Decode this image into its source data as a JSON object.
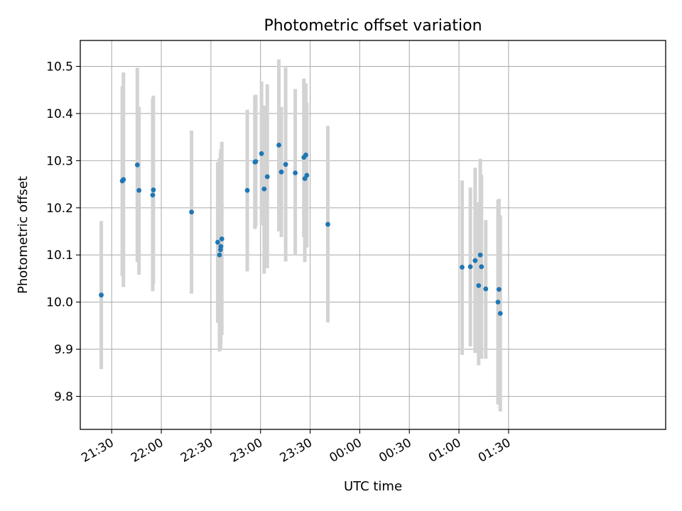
{
  "chart_data": {
    "type": "scatter",
    "title": "Photometric offset variation",
    "xlabel": "UTC time",
    "ylabel": "Photometric offset",
    "x_unit": "minutes (UTC clock, values past midnight > 1440)",
    "xlim": [
      1271,
      1625
    ],
    "ylim": [
      9.73,
      10.555
    ],
    "grid": true,
    "x_ticks": [
      {
        "value": 1290,
        "label": "21:30"
      },
      {
        "value": 1320,
        "label": "22:00"
      },
      {
        "value": 1350,
        "label": "22:30"
      },
      {
        "value": 1380,
        "label": "23:00"
      },
      {
        "value": 1410,
        "label": "23:30"
      },
      {
        "value": 1440,
        "label": "00:00"
      },
      {
        "value": 1470,
        "label": "00:30"
      },
      {
        "value": 1500,
        "label": "01:00"
      },
      {
        "value": 1530,
        "label": "01:30"
      }
    ],
    "y_ticks": [
      {
        "value": 9.8,
        "label": "9.8"
      },
      {
        "value": 9.9,
        "label": "9.9"
      },
      {
        "value": 10.0,
        "label": "10.0"
      },
      {
        "value": 10.1,
        "label": "10.1"
      },
      {
        "value": 10.2,
        "label": "10.2"
      },
      {
        "value": 10.3,
        "label": "10.3"
      },
      {
        "value": 10.4,
        "label": "10.4"
      },
      {
        "value": 10.5,
        "label": "10.5"
      }
    ],
    "colors": {
      "point": "#1f77b4",
      "errorbar": "#d3d3d3",
      "grid": "#b0b0b0"
    },
    "series": [
      {
        "points": [
          {
            "x": 1283.7,
            "y": 10.015,
            "ylo": 9.858,
            "yhi": 10.172
          },
          {
            "x": 1296.4,
            "y": 10.257,
            "ylo": 10.055,
            "yhi": 10.458
          },
          {
            "x": 1297.1,
            "y": 10.26,
            "ylo": 10.032,
            "yhi": 10.487
          },
          {
            "x": 1305.5,
            "y": 10.291,
            "ylo": 10.085,
            "yhi": 10.497
          },
          {
            "x": 1306.5,
            "y": 10.237,
            "ylo": 10.058,
            "yhi": 10.414
          },
          {
            "x": 1314.8,
            "y": 10.227,
            "ylo": 10.023,
            "yhi": 10.432
          },
          {
            "x": 1315.2,
            "y": 10.238,
            "ylo": 10.038,
            "yhi": 10.438
          },
          {
            "x": 1338.3,
            "y": 10.191,
            "ylo": 10.018,
            "yhi": 10.364
          },
          {
            "x": 1354.1,
            "y": 10.127,
            "ylo": 9.956,
            "yhi": 10.297
          },
          {
            "x": 1355.2,
            "y": 10.1,
            "ylo": 9.895,
            "yhi": 10.305
          },
          {
            "x": 1355.8,
            "y": 10.111,
            "ylo": 9.9,
            "yhi": 10.317
          },
          {
            "x": 1356.0,
            "y": 10.118,
            "ylo": 9.91,
            "yhi": 10.325
          },
          {
            "x": 1356.6,
            "y": 10.134,
            "ylo": 9.93,
            "yhi": 10.34
          },
          {
            "x": 1372.0,
            "y": 10.237,
            "ylo": 10.065,
            "yhi": 10.408
          },
          {
            "x": 1376.6,
            "y": 10.297,
            "ylo": 10.155,
            "yhi": 10.438
          },
          {
            "x": 1377.1,
            "y": 10.298,
            "ylo": 10.16,
            "yhi": 10.44
          },
          {
            "x": 1380.6,
            "y": 10.315,
            "ylo": 10.163,
            "yhi": 10.468
          },
          {
            "x": 1382.2,
            "y": 10.24,
            "ylo": 10.06,
            "yhi": 10.417
          },
          {
            "x": 1384.1,
            "y": 10.266,
            "ylo": 10.072,
            "yhi": 10.462
          },
          {
            "x": 1391.1,
            "y": 10.333,
            "ylo": 10.15,
            "yhi": 10.515
          },
          {
            "x": 1392.6,
            "y": 10.276,
            "ylo": 10.138,
            "yhi": 10.414
          },
          {
            "x": 1395.2,
            "y": 10.292,
            "ylo": 10.086,
            "yhi": 10.498
          },
          {
            "x": 1401.0,
            "y": 10.274,
            "ylo": 10.1,
            "yhi": 10.452
          },
          {
            "x": 1406.2,
            "y": 10.307,
            "ylo": 10.138,
            "yhi": 10.474
          },
          {
            "x": 1406.8,
            "y": 10.262,
            "ylo": 10.085,
            "yhi": 10.438
          },
          {
            "x": 1407.4,
            "y": 10.312,
            "ylo": 10.16,
            "yhi": 10.464
          },
          {
            "x": 1408.0,
            "y": 10.269,
            "ylo": 10.116,
            "yhi": 10.423
          },
          {
            "x": 1420.7,
            "y": 10.165,
            "ylo": 9.957,
            "yhi": 10.374
          },
          {
            "x": 1501.9,
            "y": 10.074,
            "ylo": 9.888,
            "yhi": 10.258
          },
          {
            "x": 1506.9,
            "y": 10.075,
            "ylo": 9.906,
            "yhi": 10.243
          },
          {
            "x": 1509.8,
            "y": 10.088,
            "ylo": 9.892,
            "yhi": 10.285
          },
          {
            "x": 1511.9,
            "y": 10.035,
            "ylo": 9.866,
            "yhi": 10.212
          },
          {
            "x": 1512.9,
            "y": 10.1,
            "ylo": 9.897,
            "yhi": 10.304
          },
          {
            "x": 1513.6,
            "y": 10.075,
            "ylo": 9.88,
            "yhi": 10.27
          },
          {
            "x": 1516.2,
            "y": 10.028,
            "ylo": 9.88,
            "yhi": 10.174
          },
          {
            "x": 1523.6,
            "y": 10.0,
            "ylo": 9.783,
            "yhi": 10.217
          },
          {
            "x": 1524.2,
            "y": 10.027,
            "ylo": 9.837,
            "yhi": 10.219
          },
          {
            "x": 1525.0,
            "y": 9.976,
            "ylo": 9.768,
            "yhi": 10.184
          }
        ]
      }
    ]
  }
}
